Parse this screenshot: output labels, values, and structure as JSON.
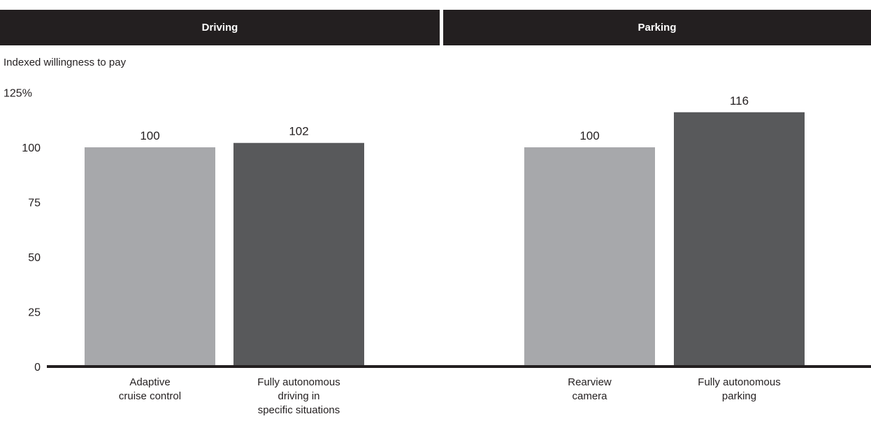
{
  "panels": [
    {
      "title": "Driving"
    },
    {
      "title": "Parking"
    }
  ],
  "chart_data": {
    "type": "bar",
    "ylabel": "Indexed willingness to pay",
    "ylim": [
      0,
      125
    ],
    "yticks": [
      0,
      25,
      50,
      75,
      100,
      125
    ],
    "ytick_labels": [
      "0",
      "25",
      "50",
      "75",
      "100",
      "125%"
    ],
    "grid": false,
    "groups": [
      {
        "panel": "Driving",
        "categories": [
          [
            "Adaptive",
            "cruise control"
          ],
          [
            "Fully autonomous",
            "driving in",
            "specific situations"
          ]
        ],
        "values": [
          100,
          102
        ]
      },
      {
        "panel": "Parking",
        "categories": [
          [
            "Rearview",
            "camera"
          ],
          [
            "Fully autonomous",
            "parking"
          ]
        ],
        "values": [
          100,
          116
        ]
      }
    ],
    "colors": {
      "baseline_feature": "#a7a8ab",
      "autonomous_feature": "#58595b",
      "axis": "#231f20"
    }
  }
}
